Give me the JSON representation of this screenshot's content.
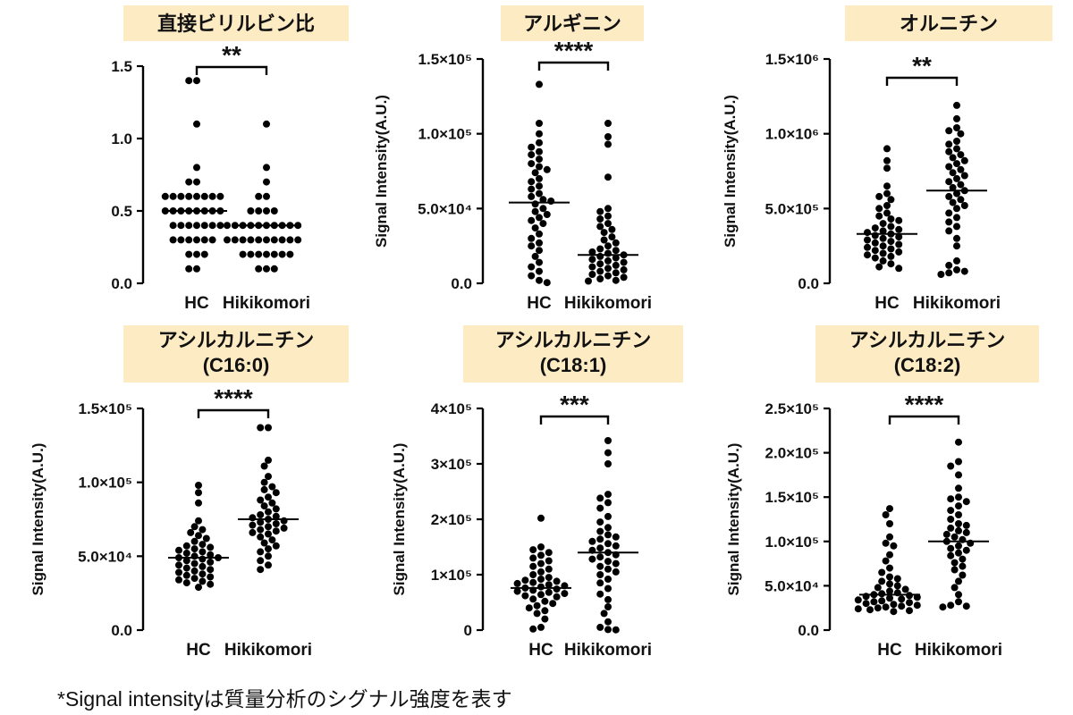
{
  "footnote": "*Signal intensityは質量分析のシグナル強度を表す",
  "colors": {
    "title_bg": "#FDEBC4",
    "marker": "#000000",
    "axis": "#000000"
  },
  "chart_data": [
    {
      "type": "scatter",
      "title_lines": [
        "直接ビリルビン比"
      ],
      "ylabel": "",
      "categories": [
        "HC",
        "Hikikomori"
      ],
      "ylim": [
        0,
        1.5
      ],
      "yticks": [
        0,
        0.5,
        1.0,
        1.5
      ],
      "ytick_labels": [
        "0.0",
        "0.5",
        "1.0",
        "1.5"
      ],
      "significance": "**",
      "median_lines": [
        0.5,
        0.4
      ],
      "series": [
        {
          "values": [
            1.4,
            1.4,
            1.1,
            0.8,
            0.7,
            0.7,
            0.6,
            0.6,
            0.6,
            0.6,
            0.6,
            0.6,
            0.6,
            0.6,
            0.5,
            0.5,
            0.5,
            0.5,
            0.5,
            0.5,
            0.5,
            0.5,
            0.4,
            0.4,
            0.4,
            0.4,
            0.4,
            0.4,
            0.4,
            0.3,
            0.3,
            0.3,
            0.3,
            0.3,
            0.3,
            0.2,
            0.2,
            0.2,
            0.1,
            0.1
          ]
        },
        {
          "values": [
            1.1,
            0.8,
            0.7,
            0.6,
            0.6,
            0.5,
            0.5,
            0.5,
            0.5,
            0.4,
            0.4,
            0.4,
            0.4,
            0.4,
            0.4,
            0.4,
            0.4,
            0.4,
            0.4,
            0.3,
            0.3,
            0.3,
            0.3,
            0.3,
            0.3,
            0.3,
            0.3,
            0.3,
            0.3,
            0.2,
            0.2,
            0.2,
            0.2,
            0.2,
            0.2,
            0.2,
            0.1,
            0.1,
            0.1
          ]
        }
      ]
    },
    {
      "type": "scatter",
      "title_lines": [
        "アルギニン"
      ],
      "ylabel": "Signal Intensity(A.U.)",
      "categories": [
        "HC",
        "Hikikomori"
      ],
      "ylim": [
        0,
        150000
      ],
      "yticks": [
        0,
        50000,
        100000,
        150000
      ],
      "ytick_labels": [
        "0.0",
        "5.0×10⁴",
        "1.0×10⁵",
        "1.5×10⁵"
      ],
      "significance": "****",
      "median_lines": [
        54000,
        19000
      ],
      "series": [
        {
          "values": [
            133000,
            107000,
            100000,
            94000,
            91000,
            88000,
            86000,
            83000,
            80000,
            78000,
            76000,
            74000,
            70000,
            68000,
            65000,
            63000,
            60000,
            58000,
            56000,
            55000,
            53000,
            50000,
            48000,
            46000,
            44000,
            42000,
            40000,
            37000,
            33000,
            30000,
            27000,
            25000,
            22000,
            18000,
            14000,
            11000,
            8000,
            5000,
            2000,
            500
          ]
        },
        {
          "values": [
            107000,
            98000,
            93000,
            71000,
            50000,
            48000,
            45000,
            43000,
            40000,
            38000,
            36000,
            34000,
            31000,
            29000,
            27000,
            25000,
            23000,
            22000,
            21000,
            20000,
            19000,
            18000,
            17000,
            16000,
            15000,
            14000,
            13000,
            12000,
            11000,
            10000,
            9000,
            8000,
            7000,
            6000,
            5000,
            4000,
            3000,
            2000,
            1500
          ]
        }
      ]
    },
    {
      "type": "scatter",
      "title_lines": [
        "オルニチン"
      ],
      "ylabel": "Signal Intensity(A.U.)",
      "categories": [
        "HC",
        "Hikikomori"
      ],
      "ylim": [
        0,
        1500000
      ],
      "yticks": [
        0,
        500000,
        1000000,
        1500000
      ],
      "ytick_labels": [
        "0.0",
        "5.0×10⁵",
        "1.0×10⁶",
        "1.5×10⁶"
      ],
      "significance": "**",
      "median_lines": [
        330000,
        620000
      ],
      "series": [
        {
          "values": [
            900000,
            820000,
            770000,
            650000,
            600000,
            580000,
            560000,
            520000,
            500000,
            470000,
            450000,
            430000,
            420000,
            400000,
            380000,
            370000,
            360000,
            350000,
            340000,
            330000,
            320000,
            310000,
            300000,
            290000,
            280000,
            270000,
            260000,
            250000,
            240000,
            230000,
            220000,
            210000,
            200000,
            190000,
            180000,
            170000,
            150000,
            130000,
            110000,
            100000
          ]
        },
        {
          "values": [
            1190000,
            1100000,
            1040000,
            1020000,
            1000000,
            950000,
            930000,
            900000,
            880000,
            860000,
            840000,
            820000,
            800000,
            780000,
            760000,
            740000,
            720000,
            700000,
            680000,
            660000,
            640000,
            620000,
            600000,
            580000,
            560000,
            540000,
            520000,
            500000,
            470000,
            440000,
            410000,
            380000,
            350000,
            300000,
            250000,
            150000,
            120000,
            90000,
            80000,
            70000,
            60000
          ]
        }
      ]
    },
    {
      "type": "scatter",
      "title_lines": [
        "アシルカルニチン",
        "(C16:0)"
      ],
      "ylabel": "Signal Intensity(A.U.)",
      "categories": [
        "HC",
        "Hikikomori"
      ],
      "ylim": [
        0,
        150000
      ],
      "yticks": [
        0,
        50000,
        100000,
        150000
      ],
      "ytick_labels": [
        "0.0",
        "5.0×10⁴",
        "1.0×10⁵",
        "1.5×10⁵"
      ],
      "significance": "****",
      "median_lines": [
        49000,
        75000
      ],
      "series": [
        {
          "values": [
            98000,
            93000,
            86000,
            74000,
            70000,
            68000,
            66000,
            64000,
            62000,
            60000,
            58000,
            57000,
            56000,
            55000,
            54000,
            53000,
            52000,
            51000,
            50000,
            49000,
            49000,
            48000,
            47000,
            46000,
            45000,
            44000,
            43000,
            42000,
            41000,
            40000,
            39000,
            38000,
            37000,
            36000,
            35000,
            34000,
            33000,
            32000,
            31000,
            29000
          ]
        },
        {
          "values": [
            137000,
            137000,
            115000,
            111000,
            104000,
            100000,
            97000,
            95000,
            93000,
            90000,
            88000,
            86000,
            84000,
            82000,
            80000,
            78000,
            77000,
            76000,
            75000,
            74000,
            73000,
            72000,
            71000,
            70000,
            69000,
            68000,
            67000,
            66000,
            65000,
            63000,
            61000,
            59000,
            57000,
            55000,
            53000,
            50000,
            47000,
            44000,
            41000
          ]
        }
      ]
    },
    {
      "type": "scatter",
      "title_lines": [
        "アシルカルニチン",
        "(C18:1)"
      ],
      "ylabel": "Signal Intensity(A.U.)",
      "categories": [
        "HC",
        "Hikikomori"
      ],
      "ylim": [
        0,
        400000
      ],
      "yticks": [
        0,
        100000,
        200000,
        300000,
        400000
      ],
      "ytick_labels": [
        "0",
        "1×10⁵",
        "2×10⁵",
        "3×10⁵",
        "4×10⁵"
      ],
      "significance": "***",
      "median_lines": [
        76000,
        140000
      ],
      "series": [
        {
          "values": [
            202000,
            150000,
            145000,
            140000,
            135000,
            130000,
            125000,
            120000,
            115000,
            110000,
            105000,
            100000,
            95000,
            92000,
            90000,
            88000,
            86000,
            84000,
            82000,
            80000,
            78000,
            76000,
            74000,
            72000,
            70000,
            68000,
            66000,
            64000,
            62000,
            60000,
            56000,
            52000,
            48000,
            44000,
            40000,
            35000,
            30000,
            20000,
            5000,
            2000
          ]
        },
        {
          "values": [
            342000,
            320000,
            300000,
            245000,
            238000,
            230000,
            220000,
            205000,
            195000,
            185000,
            178000,
            172000,
            168000,
            164000,
            160000,
            156000,
            152000,
            148000,
            144000,
            140000,
            136000,
            132000,
            128000,
            124000,
            120000,
            115000,
            110000,
            105000,
            100000,
            92000,
            85000,
            75000,
            65000,
            55000,
            42000,
            30000,
            15000,
            5000,
            1000,
            500
          ]
        }
      ]
    },
    {
      "type": "scatter",
      "title_lines": [
        "アシルカルニチン",
        "(C18:2)"
      ],
      "ylabel": "Signal Intensity(A.U.)",
      "categories": [
        "HC",
        "Hikikomori"
      ],
      "ylim": [
        0,
        250000
      ],
      "yticks": [
        0,
        50000,
        100000,
        150000,
        200000,
        250000
      ],
      "ytick_labels": [
        "0.0",
        "5.0×10⁴",
        "1.0×10⁵",
        "1.5×10⁵",
        "2.0×10⁵",
        "2.5×10⁵"
      ],
      "significance": "****",
      "median_lines": [
        40000,
        100000
      ],
      "series": [
        {
          "values": [
            137000,
            130000,
            120000,
            105000,
            98000,
            95000,
            85000,
            78000,
            70000,
            65000,
            60000,
            58000,
            55000,
            52000,
            50000,
            48000,
            46000,
            44000,
            42000,
            41000,
            40000,
            39000,
            38000,
            37000,
            36000,
            35000,
            34000,
            33000,
            32000,
            31000,
            30000,
            29000,
            28000,
            27000,
            26000,
            25000,
            24000,
            23000,
            22000,
            21000
          ]
        },
        {
          "values": [
            212000,
            190000,
            185000,
            175000,
            160000,
            150000,
            148000,
            145000,
            140000,
            135000,
            130000,
            125000,
            120000,
            118000,
            115000,
            112000,
            110000,
            108000,
            105000,
            102000,
            100000,
            98000,
            95000,
            92000,
            90000,
            87000,
            84000,
            80000,
            76000,
            72000,
            68000,
            62000,
            55000,
            48000,
            40000,
            32000,
            28000,
            27000,
            26000
          ]
        }
      ]
    }
  ]
}
